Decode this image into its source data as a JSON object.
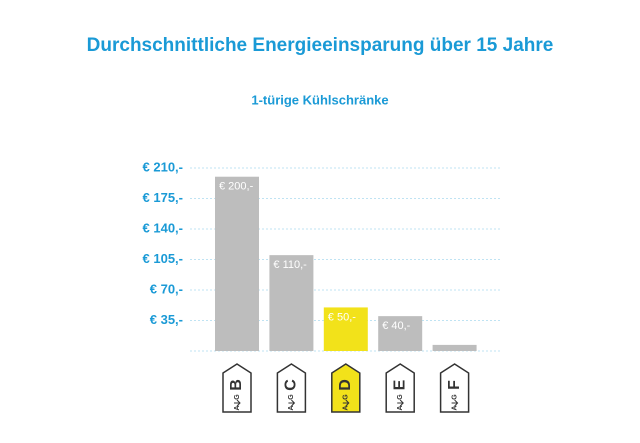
{
  "chart_data": {
    "type": "bar",
    "title": "Durchschnittliche Energieeinsparung über 15 Jahre",
    "subtitle": "1-türige Kühlschränke",
    "categories": [
      "B",
      "C",
      "D",
      "E",
      "F"
    ],
    "values": [
      200,
      110,
      50,
      40,
      7
    ],
    "value_labels": [
      "€ 200,-",
      "€ 110,-",
      "€ 50,-",
      "€ 40,-",
      null
    ],
    "colors": [
      "#bdbdbd",
      "#bdbdbd",
      "#f2e21a",
      "#bdbdbd",
      "#bdbdbd"
    ],
    "scale": [
      "A",
      "G"
    ],
    "ylim": [
      0,
      210
    ],
    "yticks": [
      {
        "value": 35,
        "label": "€ 35,-"
      },
      {
        "value": 70,
        "label": "€ 70,-"
      },
      {
        "value": 105,
        "label": "€ 105,-"
      },
      {
        "value": 140,
        "label": "€ 140,-"
      },
      {
        "value": 175,
        "label": "€ 175,-"
      },
      {
        "value": 210,
        "label": "€ 210,-"
      }
    ],
    "grid": true
  }
}
